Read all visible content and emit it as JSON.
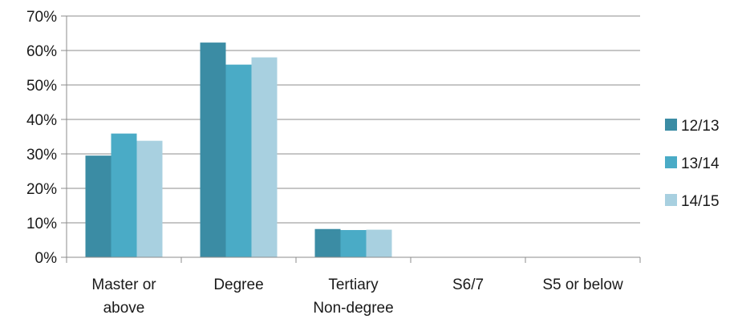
{
  "chart_data": {
    "type": "bar",
    "categories": [
      "Master or\nabove",
      "Degree",
      "Tertiary\nNon-degree",
      "S6/7",
      "S5 or below"
    ],
    "series": [
      {
        "name": "12/13",
        "values": [
          29.5,
          62.3,
          8.2,
          0,
          0
        ],
        "color": "#3b8ca4"
      },
      {
        "name": "13/14",
        "values": [
          35.9,
          55.9,
          7.9,
          0,
          0
        ],
        "color": "#4aabc6"
      },
      {
        "name": "14/15",
        "values": [
          33.8,
          58.0,
          8.0,
          0,
          0
        ],
        "color": "#a8d0e0"
      }
    ],
    "ylim": [
      0,
      70
    ],
    "yticks": [
      "0%",
      "10%",
      "20%",
      "30%",
      "40%",
      "50%",
      "60%",
      "70%"
    ],
    "grid": true,
    "legend_position": "right",
    "title": "",
    "xlabel": "",
    "ylabel": ""
  }
}
